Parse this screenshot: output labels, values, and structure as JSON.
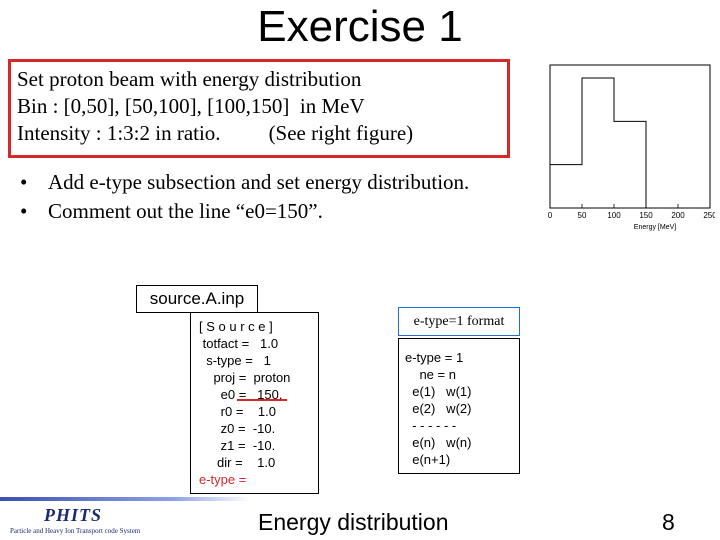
{
  "title": "Exercise 1",
  "intro_box": {
    "line1": "Set proton beam with energy distribution",
    "line2": "Bin : [0,50], [50,100], [100,150]  in MeV",
    "line3_a": "Intensity : 1:3:2 in ratio.",
    "line3_b": "(See right figure)"
  },
  "bullets": [
    "Add e-type subsection and set energy distribution.",
    "Comment out the line “e0=150”."
  ],
  "bullet_glyph": "•",
  "chart_data": {
    "type": "line",
    "xlabel": "Energy [MeV]",
    "x_ticks": [
      "0",
      "50",
      "100",
      "150",
      "200",
      "250"
    ],
    "xlim": [
      0,
      250
    ],
    "series": [
      {
        "x": [
          0,
          50,
          50,
          100,
          100,
          150,
          150
        ],
        "y": [
          1,
          1,
          3,
          3,
          2,
          2,
          0
        ]
      }
    ],
    "grid": false,
    "accent": "#000000"
  },
  "source_file_label": "source.A.inp",
  "source_lines": [
    "[ S o u r c e ]",
    " totfact =   1.0",
    "  s-type =   1",
    "    proj =  proton",
    "      e0 =   150.",
    "      r0 =    1.0",
    "      z0 =  -10.",
    "      z1 =  -10.",
    "     dir =    1.0",
    "e-type ="
  ],
  "etype_format_label": "e-type=1 format",
  "format_lines": [
    "e-type = 1",
    "    ne = n",
    "  e(1)   w(1)",
    "  e(2)   w(2)",
    "  - - - - - -",
    "  e(n)   w(n)",
    "  e(n+1)"
  ],
  "caption": "Energy distribution",
  "page_number": "8",
  "logo": {
    "name": "PHITS",
    "subtitle": "Particle and Heavy Ion Transport code System"
  },
  "colors": {
    "red_box": "#d62828",
    "underline": "#d62828",
    "etype_text": "#d62828",
    "blue_box": "#1f6fd1"
  }
}
